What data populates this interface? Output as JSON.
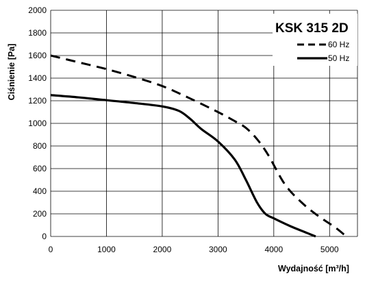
{
  "chart_data": {
    "type": "line",
    "title": "KSK 315 2D",
    "xlabel": "Wydajność [m³/h]",
    "ylabel": "Ciśnienie [Pa]",
    "xlim": [
      0,
      5500
    ],
    "ylim": [
      0,
      2000
    ],
    "x_ticks": [
      0,
      1000,
      2000,
      3000,
      4000,
      5000
    ],
    "y_ticks": [
      0,
      200,
      400,
      600,
      800,
      1000,
      1200,
      1400,
      1600,
      1800,
      2000
    ],
    "grid": true,
    "legend_position": "top-right",
    "series": [
      {
        "name": "60 Hz",
        "style": "dashed",
        "color": "#000000",
        "points": [
          [
            0,
            1600
          ],
          [
            500,
            1540
          ],
          [
            1000,
            1480
          ],
          [
            1500,
            1410
          ],
          [
            2000,
            1330
          ],
          [
            2500,
            1220
          ],
          [
            3000,
            1100
          ],
          [
            3300,
            1020
          ],
          [
            3500,
            960
          ],
          [
            3700,
            860
          ],
          [
            3900,
            720
          ],
          [
            4200,
            460
          ],
          [
            4500,
            300
          ],
          [
            4800,
            180
          ],
          [
            5100,
            80
          ],
          [
            5300,
            0
          ]
        ]
      },
      {
        "name": "50 Hz",
        "style": "solid",
        "color": "#000000",
        "points": [
          [
            0,
            1250
          ],
          [
            500,
            1230
          ],
          [
            1000,
            1205
          ],
          [
            1500,
            1180
          ],
          [
            2000,
            1150
          ],
          [
            2300,
            1110
          ],
          [
            2500,
            1040
          ],
          [
            2700,
            950
          ],
          [
            3000,
            840
          ],
          [
            3300,
            680
          ],
          [
            3500,
            500
          ],
          [
            3700,
            300
          ],
          [
            3850,
            200
          ],
          [
            4000,
            160
          ],
          [
            4300,
            90
          ],
          [
            4600,
            30
          ],
          [
            4750,
            0
          ]
        ]
      }
    ]
  }
}
